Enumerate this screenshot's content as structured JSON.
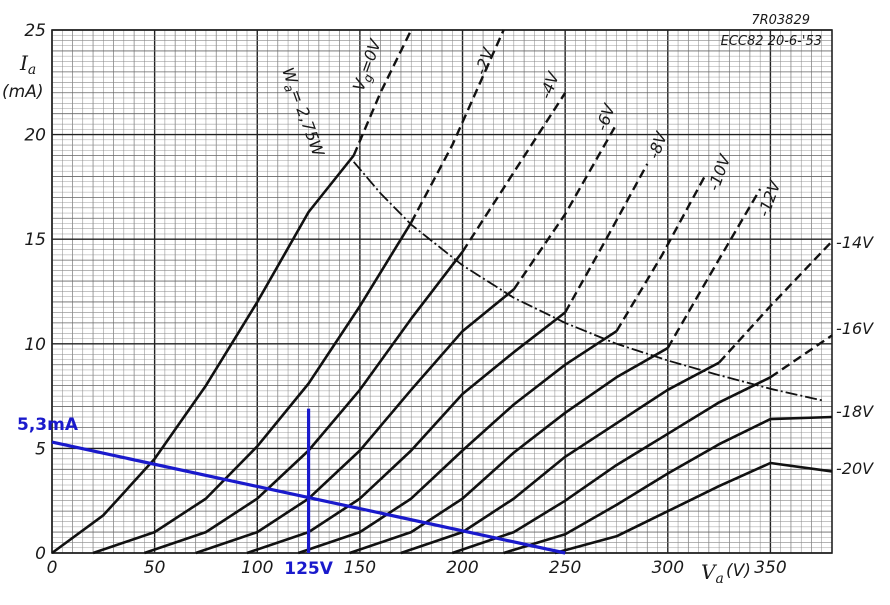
{
  "chart_data": {
    "type": "line",
    "title": "",
    "meta": {
      "code": "7R03829",
      "tube_date": "ECC82 20-6-'53"
    },
    "xlabel": "V",
    "xlabel_sub": "a",
    "xunit": "(V)",
    "ylabel": "I",
    "ylabel_sub": "a",
    "yunit": "(mA)",
    "xlim": [
      0,
      380
    ],
    "ylim": [
      0,
      25
    ],
    "x_ticks": [
      {
        "value": 0,
        "label": "0"
      },
      {
        "value": 50,
        "label": "50"
      },
      {
        "value": 100,
        "label": "100"
      },
      {
        "value": 150,
        "label": "150"
      },
      {
        "value": 200,
        "label": "200"
      },
      {
        "value": 250,
        "label": "250"
      },
      {
        "value": 300,
        "label": "300"
      },
      {
        "value": 350,
        "label": "350"
      }
    ],
    "y_ticks": [
      {
        "value": 0,
        "label": "0"
      },
      {
        "value": 5,
        "label": "5"
      },
      {
        "value": 10,
        "label": "10"
      },
      {
        "value": 15,
        "label": "15"
      },
      {
        "value": 20,
        "label": "20"
      },
      {
        "value": 25,
        "label": "25"
      }
    ],
    "grid": true,
    "series": [
      {
        "name": "Vg=0V",
        "label": "V",
        "label_sub": "g",
        "label_rest": "=0V",
        "x": [
          0,
          25,
          50,
          75,
          100,
          125,
          147
        ],
        "y": [
          0,
          1.8,
          4.5,
          8.0,
          12.0,
          16.3,
          19.0
        ],
        "dashed_x": [
          147,
          160,
          175
        ],
        "dashed_y": [
          19.0,
          22.0,
          25.0
        ]
      },
      {
        "name": "-2V",
        "label": "-2V",
        "x": [
          20,
          50,
          75,
          100,
          125,
          150,
          175
        ],
        "y": [
          0,
          1.0,
          2.6,
          5.1,
          8.1,
          11.8,
          15.8
        ],
        "dashed_x": [
          175,
          195,
          220
        ],
        "dashed_y": [
          15.8,
          19.5,
          25.0
        ]
      },
      {
        "name": "-4V",
        "label": "-4V",
        "x": [
          45,
          75,
          100,
          125,
          150,
          175,
          200
        ],
        "y": [
          0,
          1.0,
          2.6,
          4.9,
          7.8,
          11.2,
          14.4
        ],
        "dashed_x": [
          200,
          225,
          250
        ],
        "dashed_y": [
          14.4,
          18.2,
          22.0
        ]
      },
      {
        "name": "-6V",
        "label": "-6V",
        "x": [
          70,
          100,
          125,
          150,
          175,
          200,
          225
        ],
        "y": [
          0,
          1.0,
          2.6,
          4.9,
          7.8,
          10.6,
          12.6
        ],
        "dashed_x": [
          225,
          250,
          275
        ],
        "dashed_y": [
          12.6,
          16.2,
          20.5
        ]
      },
      {
        "name": "-8V",
        "label": "-8V",
        "x": [
          95,
          125,
          150,
          175,
          200,
          225,
          250
        ],
        "y": [
          0,
          1.0,
          2.6,
          4.9,
          7.6,
          9.6,
          11.5
        ],
        "dashed_x": [
          250,
          270,
          290
        ],
        "dashed_y": [
          11.5,
          15.0,
          18.6
        ]
      },
      {
        "name": "-10V",
        "label": "-10V",
        "x": [
          120,
          150,
          175,
          200,
          225,
          250,
          275
        ],
        "y": [
          0,
          1.0,
          2.6,
          4.9,
          7.1,
          9.0,
          10.6
        ],
        "dashed_x": [
          275,
          297,
          318
        ],
        "dashed_y": [
          10.6,
          14.2,
          18.0
        ]
      },
      {
        "name": "-12V",
        "label": "-12V",
        "x": [
          145,
          175,
          200,
          225,
          250,
          275,
          300
        ],
        "y": [
          0,
          1.0,
          2.6,
          4.8,
          6.7,
          8.4,
          9.8
        ],
        "dashed_x": [
          300,
          320,
          345
        ],
        "dashed_y": [
          9.8,
          13.2,
          17.4
        ]
      },
      {
        "name": "-14V",
        "label": "-14V",
        "x": [
          170,
          200,
          225,
          250,
          275,
          300,
          325
        ],
        "y": [
          0,
          1.0,
          2.6,
          4.6,
          6.2,
          7.8,
          9.1
        ],
        "dashed_x": [
          325,
          350,
          380
        ],
        "dashed_y": [
          9.1,
          11.8,
          14.9
        ]
      },
      {
        "name": "-16V",
        "label": "-16V",
        "x": [
          195,
          225,
          250,
          275,
          300,
          325,
          350
        ],
        "y": [
          0,
          1.0,
          2.5,
          4.2,
          5.7,
          7.2,
          8.4
        ],
        "dashed_x": [
          350,
          380
        ],
        "dashed_y": [
          8.4,
          10.4
        ]
      },
      {
        "name": "-18V",
        "label": "-18V",
        "x": [
          220,
          250,
          275,
          300,
          325,
          350,
          380
        ],
        "y": [
          0,
          0.9,
          2.3,
          3.8,
          5.2,
          6.4,
          6.5
        ],
        "dashed_x": [],
        "dashed_y": []
      },
      {
        "name": "-20V",
        "label": "-20V",
        "x": [
          245,
          275,
          300,
          325,
          350,
          380
        ],
        "y": [
          0,
          0.8,
          2.0,
          3.2,
          4.3,
          3.9
        ],
        "dashed_x": [],
        "dashed_y": []
      }
    ],
    "dissipation_curve": {
      "label": "W",
      "label_sub": "a",
      "label_rest": "= 2,75W",
      "x": [
        147,
        160,
        175,
        200,
        225,
        250,
        275,
        300,
        325,
        350,
        375
      ],
      "y": [
        18.7,
        17.2,
        15.7,
        13.75,
        12.2,
        11.0,
        10.0,
        9.2,
        8.5,
        7.85,
        7.3
      ]
    },
    "annotations": {
      "color": "#1a1acc",
      "load_line": {
        "x": [
          0,
          250
        ],
        "y": [
          5.3,
          0
        ]
      },
      "operating_point": {
        "x": 125,
        "y_top": 6.9,
        "y_bottom": 0,
        "label": "125V"
      },
      "current_label": "5,3mA"
    }
  }
}
